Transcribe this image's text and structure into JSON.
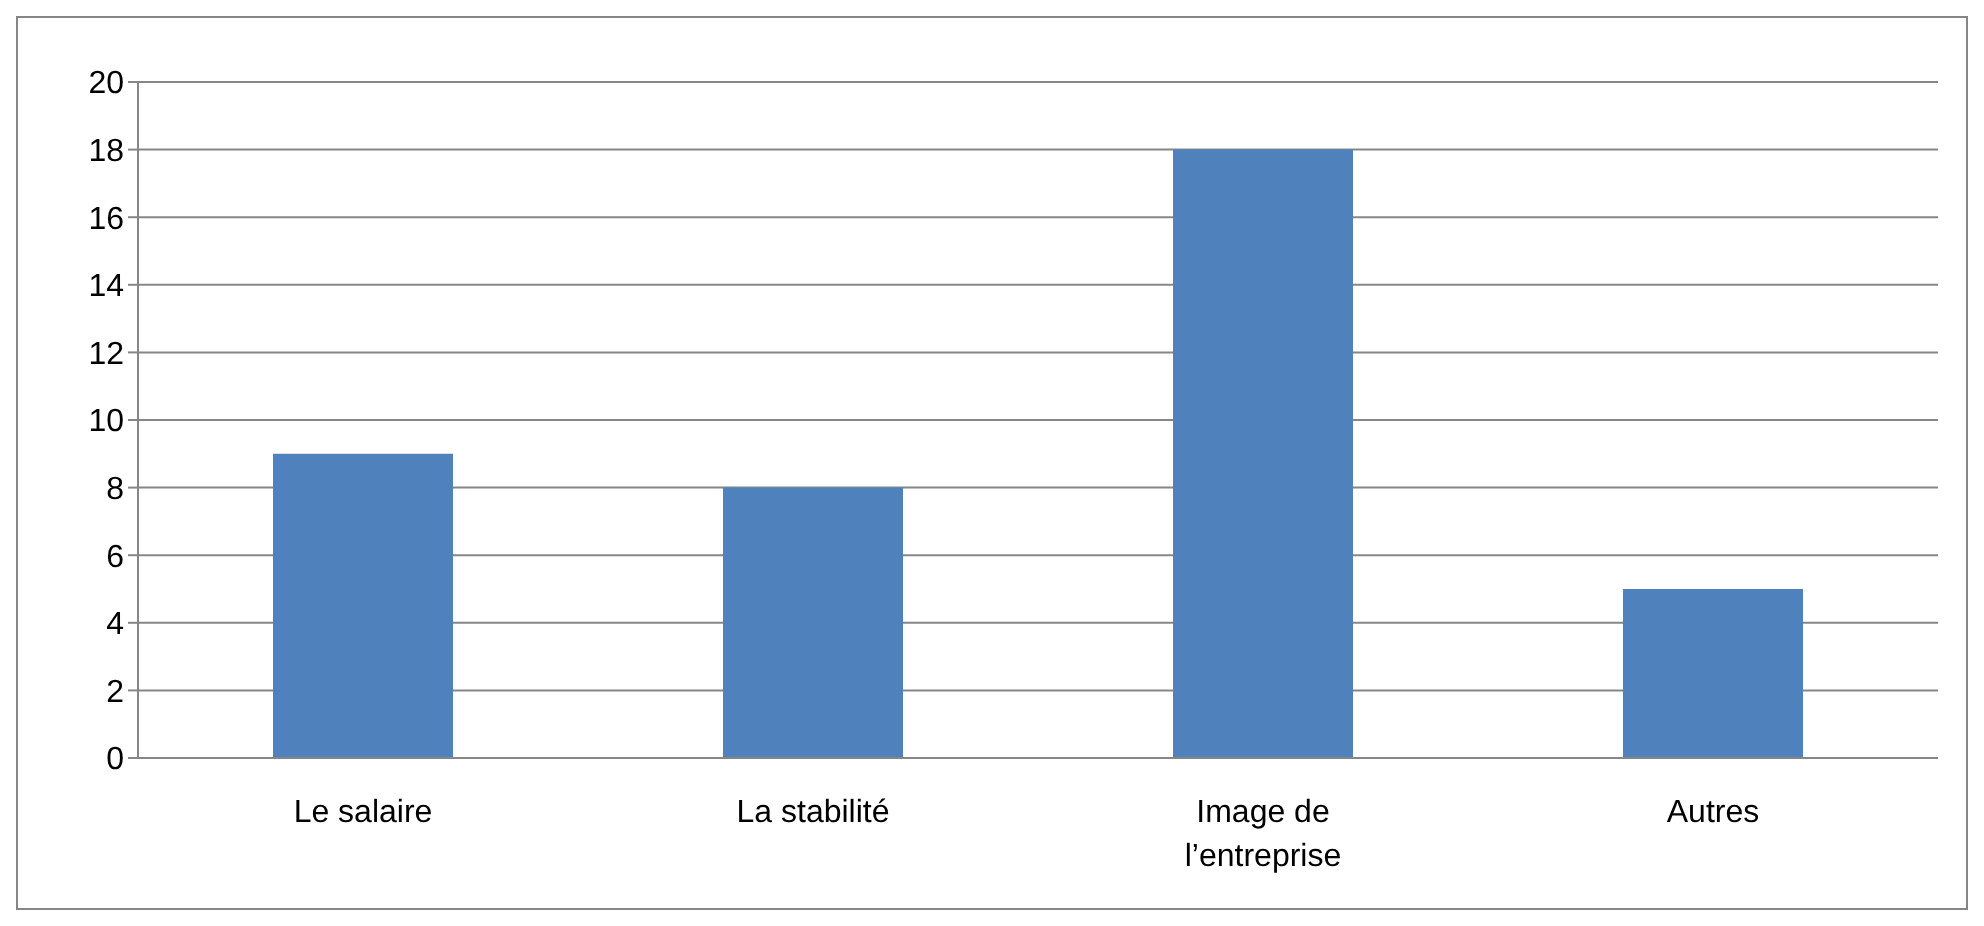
{
  "chart_data": {
    "type": "bar",
    "categories": [
      "Le salaire",
      "La stabilité",
      "Image de l’entreprise",
      "Autres"
    ],
    "values": [
      9,
      8,
      18,
      5
    ],
    "color": "#4f81bd",
    "ylim": [
      0,
      20
    ],
    "yticks": [
      0,
      2,
      4,
      6,
      8,
      10,
      12,
      14,
      16,
      18,
      20
    ],
    "grid": "y",
    "legend": false
  }
}
